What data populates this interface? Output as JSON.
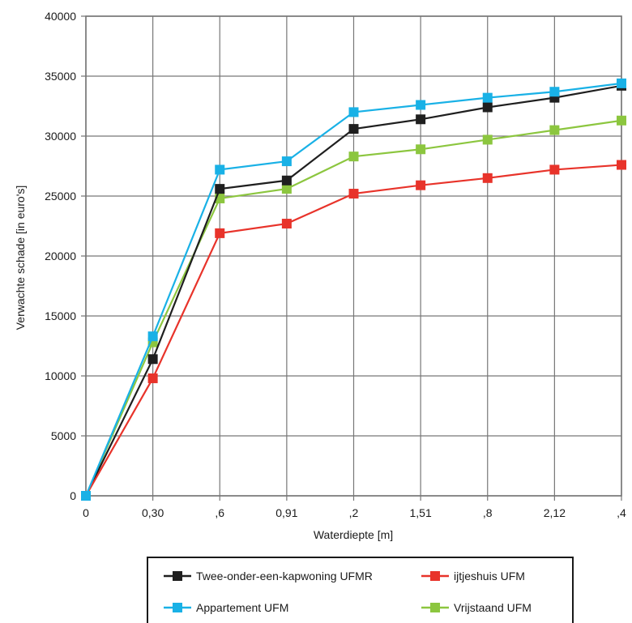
{
  "chart_data": {
    "type": "line",
    "xlabel": "Waterdiepte [m]",
    "ylabel": "Verwachte schade [in euro's]",
    "categories": [
      "0",
      "0,30",
      ",6",
      "0,91",
      ",2",
      "1,51",
      ",8",
      "2,12",
      ",4"
    ],
    "ylim": [
      0,
      40000
    ],
    "yticks": [
      0,
      5000,
      10000,
      15000,
      20000,
      25000,
      30000,
      35000,
      40000
    ],
    "grid": true,
    "legend_position": "bottom",
    "series": [
      {
        "name": "Twee-onder-een-kapwoning UFMR",
        "color": "#1f1f1f",
        "values": [
          0,
          11400,
          25600,
          26300,
          30600,
          31400,
          32400,
          33200,
          34200
        ]
      },
      {
        "name": "ijtjeshuis UFM",
        "color": "#e8332a",
        "values": [
          0,
          9800,
          21900,
          22700,
          25200,
          25900,
          26500,
          27200,
          27600
        ]
      },
      {
        "name": "Appartement UFM",
        "color": "#19b1e6",
        "values": [
          0,
          13300,
          27200,
          27900,
          32000,
          32600,
          33200,
          33700,
          34400
        ]
      },
      {
        "name": "Vrijstaand UFM",
        "color": "#8cc63f",
        "values": [
          0,
          12800,
          24800,
          25600,
          28300,
          28900,
          29700,
          30500,
          31300
        ]
      }
    ]
  }
}
